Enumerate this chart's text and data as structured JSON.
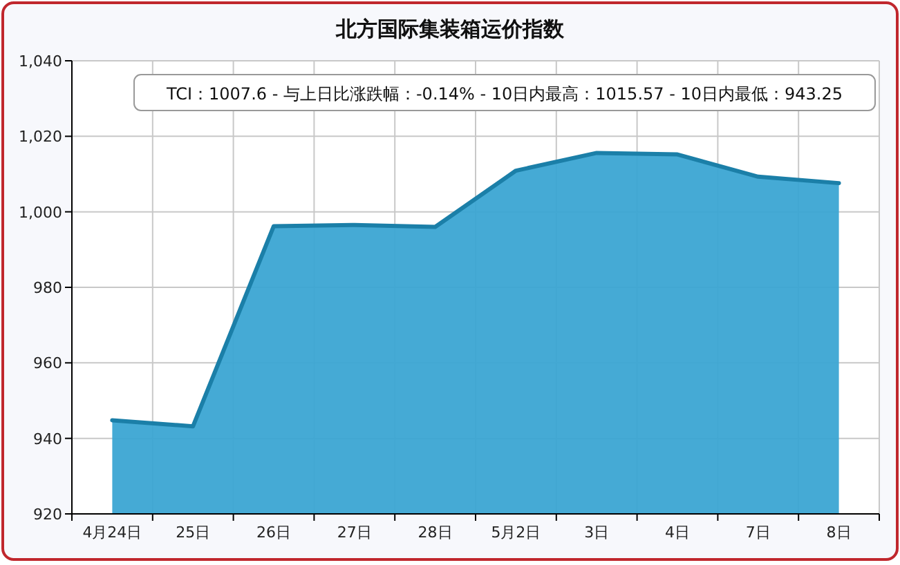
{
  "chart_data": {
    "type": "area",
    "title": "北方国际集装箱运价指数",
    "categories": [
      "4月24日",
      "25日",
      "26日",
      "27日",
      "28日",
      "5月2日",
      "3日",
      "4日",
      "7日",
      "8日"
    ],
    "series": [
      {
        "color": "#3ba5d3",
        "values": [
          944.8,
          943.2,
          996.2,
          996.5,
          996.0,
          1010.9,
          1015.6,
          1015.2,
          1009.3,
          1007.6
        ]
      }
    ],
    "ylim": [
      920,
      1040
    ],
    "yticks": [
      920,
      940,
      960,
      980,
      {
        "value": 1000,
        "label": "1,000"
      },
      {
        "value": 1020,
        "label": "1,020"
      },
      {
        "value": 1040,
        "label": "1,040"
      }
    ],
    "grid": true,
    "annotations": [
      "TCI：1007.6 - 与上日比涨跌幅：-0.14% - 10日内最高：1015.57 - 10日内最低：943.25"
    ]
  }
}
